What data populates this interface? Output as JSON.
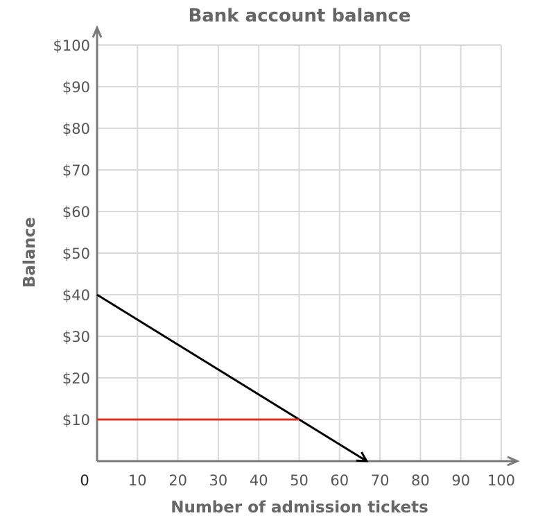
{
  "chart_data": {
    "type": "line",
    "title": "Bank account balance",
    "xlabel": "Number of admission tickets",
    "ylabel": "Balance",
    "xlim": [
      0,
      100
    ],
    "ylim": [
      0,
      100
    ],
    "grid": true,
    "origin_label": "0",
    "x_ticks": [
      "10",
      "20",
      "30",
      "40",
      "50",
      "60",
      "70",
      "80",
      "90",
      "100"
    ],
    "y_ticks": [
      "$10",
      "$20",
      "$30",
      "$40",
      "$50",
      "$60",
      "$70",
      "$80",
      "$90",
      "$100"
    ],
    "series": [
      {
        "color": "#000000",
        "arrow_end": true,
        "points": [
          [
            0,
            40
          ],
          [
            66.7,
            0
          ]
        ]
      },
      {
        "color": "#e0301e",
        "arrow_end": false,
        "points": [
          [
            0,
            10
          ],
          [
            50,
            10
          ]
        ]
      }
    ]
  }
}
